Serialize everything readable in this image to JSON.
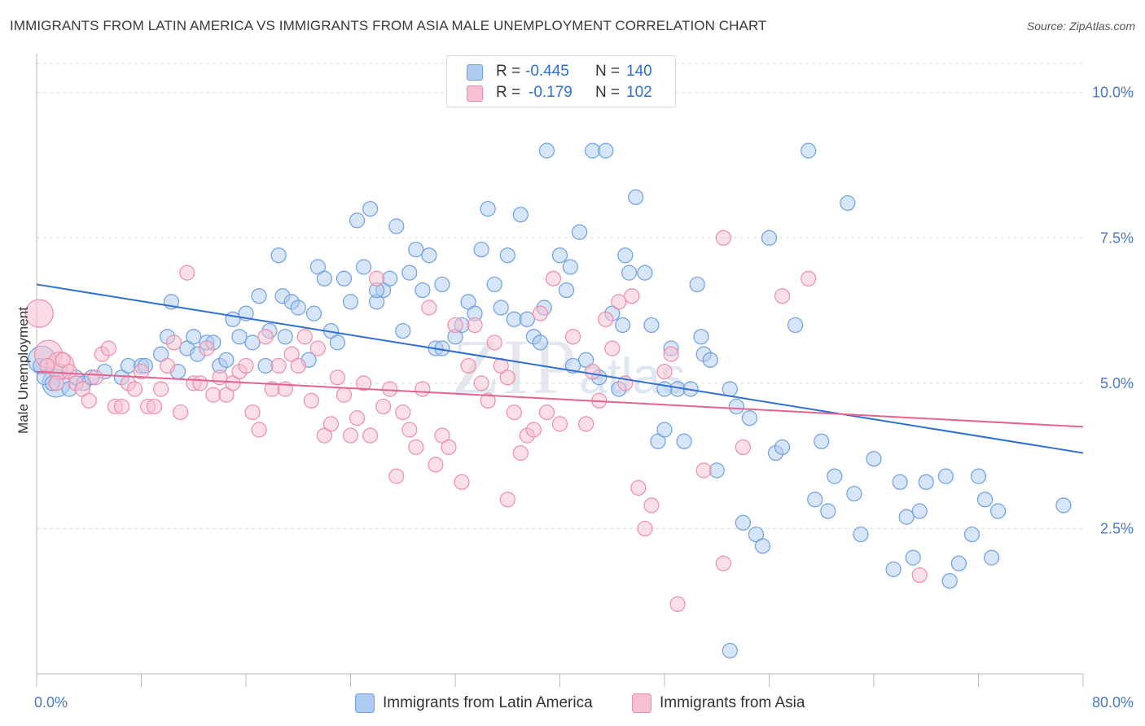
{
  "title": "IMMIGRANTS FROM LATIN AMERICA VS IMMIGRANTS FROM ASIA MALE UNEMPLOYMENT CORRELATION CHART",
  "source": "Source: ZipAtlas.com",
  "watermark": {
    "main": "ZIP",
    "sub": "atlas"
  },
  "legend": {
    "rows": [
      {
        "r_label": "R = ",
        "r_value": "-0.445",
        "n_label": "N = ",
        "n_value": "140"
      },
      {
        "r_label": "R = ",
        "r_value": "-0.179",
        "n_label": "N = ",
        "n_value": "102"
      }
    ]
  },
  "colors": {
    "latin_fill": "#aecbf2",
    "latin_stroke": "#6f9fe0",
    "latin_line": "#2f6fd0",
    "asia_fill": "#f7bfd0",
    "asia_stroke": "#ec8eab",
    "asia_line": "#e2648e",
    "grid": "#d9d9d9",
    "tick_text": "#4a78c2"
  },
  "chart_data": {
    "type": "scatter",
    "title": "IMMIGRANTS FROM LATIN AMERICA VS IMMIGRANTS FROM ASIA MALE UNEMPLOYMENT CORRELATION CHART",
    "xlabel": "",
    "ylabel": "Male Unemployment",
    "xlim": [
      0,
      80
    ],
    "ylim": [
      0,
      10.5
    ],
    "x_tick_labels": [
      "0.0%",
      "80.0%"
    ],
    "y_ticks": [
      2.5,
      5.0,
      7.5,
      10.0
    ],
    "y_tick_labels": [
      "2.5%",
      "5.0%",
      "7.5%",
      "10.0%"
    ],
    "grid": true,
    "legend_position": "top-center",
    "series": [
      {
        "name": "Immigrants from Latin America",
        "R": -0.445,
        "N": 140,
        "trend": {
          "x": [
            0,
            80
          ],
          "y": [
            6.7,
            3.8
          ]
        },
        "points": [
          [
            0.3,
            5.3
          ],
          [
            0.6,
            5.1
          ],
          [
            1.2,
            5.0
          ],
          [
            1.8,
            5.2
          ],
          [
            2.5,
            4.9
          ],
          [
            3.0,
            5.1
          ],
          [
            3.6,
            5.0
          ],
          [
            4.2,
            5.1
          ],
          [
            5.2,
            5.2
          ],
          [
            6.5,
            5.1
          ],
          [
            7.0,
            5.3
          ],
          [
            8.0,
            5.3
          ],
          [
            8.3,
            5.3
          ],
          [
            9.5,
            5.5
          ],
          [
            10.0,
            5.8
          ],
          [
            10.3,
            6.4
          ],
          [
            10.8,
            5.2
          ],
          [
            11.5,
            5.6
          ],
          [
            12.0,
            5.8
          ],
          [
            12.3,
            5.5
          ],
          [
            13.0,
            5.7
          ],
          [
            13.5,
            5.7
          ],
          [
            14.0,
            5.3
          ],
          [
            14.5,
            5.4
          ],
          [
            15.0,
            6.1
          ],
          [
            15.5,
            5.8
          ],
          [
            16.0,
            6.2
          ],
          [
            16.5,
            5.7
          ],
          [
            17.0,
            6.5
          ],
          [
            17.5,
            5.3
          ],
          [
            17.8,
            5.9
          ],
          [
            18.5,
            7.2
          ],
          [
            18.8,
            6.5
          ],
          [
            19.0,
            5.8
          ],
          [
            19.5,
            6.4
          ],
          [
            20.0,
            6.3
          ],
          [
            20.8,
            5.4
          ],
          [
            21.2,
            6.2
          ],
          [
            21.5,
            7.0
          ],
          [
            22.0,
            6.8
          ],
          [
            22.5,
            5.9
          ],
          [
            23.0,
            5.7
          ],
          [
            23.5,
            6.8
          ],
          [
            24.0,
            6.4
          ],
          [
            24.5,
            7.8
          ],
          [
            25.0,
            7.0
          ],
          [
            25.5,
            8.0
          ],
          [
            26.0,
            6.4
          ],
          [
            26.5,
            6.6
          ],
          [
            27.0,
            6.8
          ],
          [
            27.5,
            7.7
          ],
          [
            28.0,
            5.9
          ],
          [
            28.5,
            6.9
          ],
          [
            29.0,
            7.3
          ],
          [
            29.5,
            6.6
          ],
          [
            30.0,
            7.2
          ],
          [
            30.5,
            5.6
          ],
          [
            31.0,
            6.7
          ],
          [
            32.0,
            5.8
          ],
          [
            32.5,
            6.0
          ],
          [
            33.0,
            6.4
          ],
          [
            33.5,
            6.2
          ],
          [
            34.0,
            7.3
          ],
          [
            34.5,
            8.0
          ],
          [
            35.0,
            6.7
          ],
          [
            35.5,
            6.3
          ],
          [
            36.0,
            7.2
          ],
          [
            36.5,
            6.1
          ],
          [
            37.0,
            7.9
          ],
          [
            37.5,
            6.1
          ],
          [
            38.0,
            5.8
          ],
          [
            38.5,
            5.7
          ],
          [
            39.0,
            9.0
          ],
          [
            40.0,
            7.2
          ],
          [
            40.5,
            6.6
          ],
          [
            40.8,
            7.0
          ],
          [
            41.0,
            5.3
          ],
          [
            41.5,
            7.6
          ],
          [
            42.0,
            5.4
          ],
          [
            42.5,
            9.0
          ],
          [
            43.0,
            5.1
          ],
          [
            43.5,
            9.0
          ],
          [
            44.0,
            6.2
          ],
          [
            44.5,
            4.9
          ],
          [
            45.0,
            7.2
          ],
          [
            45.3,
            6.9
          ],
          [
            45.8,
            8.2
          ],
          [
            46.5,
            6.9
          ],
          [
            47.0,
            6.0
          ],
          [
            47.5,
            4.0
          ],
          [
            48.0,
            4.2
          ],
          [
            48.5,
            5.6
          ],
          [
            49.0,
            4.9
          ],
          [
            49.5,
            4.0
          ],
          [
            50.0,
            4.9
          ],
          [
            50.5,
            6.7
          ],
          [
            50.8,
            5.8
          ],
          [
            51.0,
            5.5
          ],
          [
            51.5,
            5.4
          ],
          [
            52.0,
            3.5
          ],
          [
            53.0,
            4.9
          ],
          [
            53.5,
            4.6
          ],
          [
            54.0,
            2.6
          ],
          [
            54.5,
            4.4
          ],
          [
            55.0,
            2.4
          ],
          [
            55.5,
            2.2
          ],
          [
            56.0,
            7.5
          ],
          [
            56.5,
            3.8
          ],
          [
            57.0,
            3.9
          ],
          [
            58.0,
            6.0
          ],
          [
            59.0,
            9.0
          ],
          [
            59.5,
            3.0
          ],
          [
            60.0,
            4.0
          ],
          [
            60.5,
            2.8
          ],
          [
            61.0,
            3.4
          ],
          [
            62.0,
            8.1
          ],
          [
            62.5,
            3.1
          ],
          [
            63.0,
            2.4
          ],
          [
            64.0,
            3.7
          ],
          [
            65.5,
            1.8
          ],
          [
            66.0,
            3.3
          ],
          [
            66.5,
            2.7
          ],
          [
            67.0,
            2.0
          ],
          [
            67.5,
            2.8
          ],
          [
            68.0,
            3.3
          ],
          [
            69.5,
            3.4
          ],
          [
            69.8,
            1.6
          ],
          [
            70.5,
            1.9
          ],
          [
            71.5,
            2.4
          ],
          [
            72.0,
            3.4
          ],
          [
            72.5,
            3.0
          ],
          [
            73.0,
            2.0
          ],
          [
            73.5,
            2.8
          ],
          [
            78.5,
            2.9
          ],
          [
            53.0,
            0.4
          ],
          [
            48.0,
            4.9
          ],
          [
            44.8,
            6.0
          ],
          [
            38.8,
            6.3
          ],
          [
            26.0,
            6.6
          ],
          [
            31.0,
            5.6
          ]
        ],
        "large_points": [
          [
            0.4,
            5.4
          ],
          [
            1.5,
            5.0
          ]
        ]
      },
      {
        "name": "Immigrants from Asia",
        "R": -0.179,
        "N": 102,
        "trend": {
          "x": [
            0,
            80
          ],
          "y": [
            5.2,
            4.25
          ]
        },
        "points": [
          [
            0.8,
            5.3
          ],
          [
            1.5,
            5.0
          ],
          [
            2.0,
            5.4
          ],
          [
            2.5,
            5.2
          ],
          [
            3.0,
            5.0
          ],
          [
            3.5,
            4.9
          ],
          [
            4.0,
            4.7
          ],
          [
            4.5,
            5.1
          ],
          [
            5.0,
            5.5
          ],
          [
            5.5,
            5.6
          ],
          [
            6.0,
            4.6
          ],
          [
            6.5,
            4.6
          ],
          [
            7.0,
            5.0
          ],
          [
            7.5,
            4.9
          ],
          [
            8.0,
            5.2
          ],
          [
            8.5,
            4.6
          ],
          [
            9.0,
            4.6
          ],
          [
            9.5,
            4.9
          ],
          [
            10.0,
            5.3
          ],
          [
            10.5,
            5.7
          ],
          [
            11.0,
            4.5
          ],
          [
            11.5,
            6.9
          ],
          [
            12.0,
            5.0
          ],
          [
            12.5,
            5.0
          ],
          [
            13.0,
            5.6
          ],
          [
            13.5,
            4.8
          ],
          [
            14.0,
            5.1
          ],
          [
            14.5,
            4.8
          ],
          [
            15.0,
            5.0
          ],
          [
            15.5,
            5.2
          ],
          [
            16.0,
            5.3
          ],
          [
            16.5,
            4.5
          ],
          [
            17.0,
            4.2
          ],
          [
            17.5,
            5.8
          ],
          [
            18.0,
            4.9
          ],
          [
            18.5,
            5.3
          ],
          [
            19.0,
            4.9
          ],
          [
            19.5,
            5.5
          ],
          [
            20.0,
            5.3
          ],
          [
            20.5,
            5.8
          ],
          [
            21.0,
            4.7
          ],
          [
            21.5,
            5.6
          ],
          [
            22.0,
            4.1
          ],
          [
            22.5,
            4.3
          ],
          [
            23.0,
            5.1
          ],
          [
            23.5,
            4.8
          ],
          [
            24.0,
            4.1
          ],
          [
            24.5,
            4.4
          ],
          [
            25.0,
            5.0
          ],
          [
            25.5,
            4.1
          ],
          [
            26.0,
            6.8
          ],
          [
            26.5,
            4.6
          ],
          [
            27.0,
            4.9
          ],
          [
            27.5,
            3.4
          ],
          [
            28.0,
            4.5
          ],
          [
            28.5,
            4.2
          ],
          [
            29.0,
            3.9
          ],
          [
            29.5,
            4.9
          ],
          [
            30.0,
            6.3
          ],
          [
            30.5,
            3.6
          ],
          [
            31.0,
            4.1
          ],
          [
            31.5,
            3.9
          ],
          [
            32.0,
            6.0
          ],
          [
            32.5,
            3.3
          ],
          [
            33.0,
            5.3
          ],
          [
            33.5,
            6.0
          ],
          [
            34.0,
            5.0
          ],
          [
            34.5,
            4.7
          ],
          [
            35.0,
            5.7
          ],
          [
            35.5,
            5.3
          ],
          [
            36.0,
            3.0
          ],
          [
            36.5,
            4.5
          ],
          [
            37.0,
            3.8
          ],
          [
            37.5,
            4.1
          ],
          [
            38.0,
            4.2
          ],
          [
            38.5,
            6.2
          ],
          [
            39.0,
            4.5
          ],
          [
            39.5,
            6.8
          ],
          [
            40.0,
            4.3
          ],
          [
            41.0,
            5.8
          ],
          [
            42.0,
            4.3
          ],
          [
            42.5,
            5.2
          ],
          [
            43.0,
            4.7
          ],
          [
            43.5,
            6.1
          ],
          [
            44.0,
            5.6
          ],
          [
            44.5,
            6.4
          ],
          [
            45.0,
            5.0
          ],
          [
            45.5,
            6.5
          ],
          [
            46.0,
            3.2
          ],
          [
            46.5,
            2.5
          ],
          [
            47.0,
            2.9
          ],
          [
            48.0,
            5.2
          ],
          [
            48.5,
            5.5
          ],
          [
            49.0,
            1.2
          ],
          [
            51.0,
            3.5
          ],
          [
            52.5,
            1.9
          ],
          [
            52.5,
            7.5
          ],
          [
            54.0,
            3.9
          ],
          [
            57.0,
            6.5
          ],
          [
            59.0,
            6.8
          ],
          [
            67.5,
            1.7
          ],
          [
            36.0,
            5.1
          ]
        ],
        "large_points": [
          [
            0.2,
            6.2
          ],
          [
            0.9,
            5.5
          ],
          [
            1.8,
            5.3
          ]
        ]
      }
    ]
  }
}
